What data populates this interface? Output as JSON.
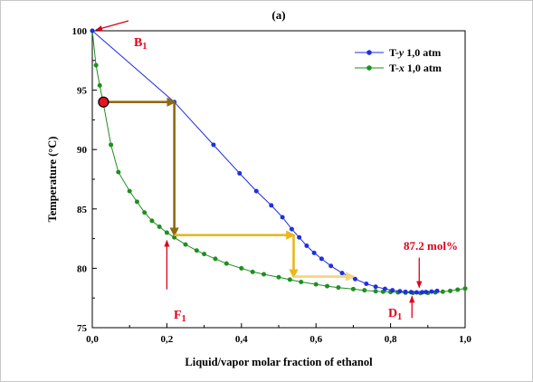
{
  "chart_data": {
    "type": "line",
    "panel_label": "(a)",
    "xlabel": "Liquid/vapor molar fraction of ethanol",
    "ylabel": "Temperature (°C)",
    "xlim": [
      0,
      1
    ],
    "ylim": [
      75,
      100
    ],
    "xticks": [
      "0,0",
      "0,2",
      "0,4",
      "0,6",
      "0,8",
      "1,0"
    ],
    "yticks": [
      "75",
      "80",
      "85",
      "90",
      "95",
      "100"
    ],
    "grid": false,
    "legend_position": "top-right",
    "series": [
      {
        "name_prefix": "T-",
        "name_var": "y",
        "name_suffix": " 1,0 atm",
        "color": "#1f2fe0",
        "x": [
          0.0,
          0.22,
          0.325,
          0.395,
          0.44,
          0.48,
          0.51,
          0.535,
          0.555,
          0.575,
          0.595,
          0.615,
          0.64,
          0.67,
          0.705,
          0.735,
          0.76,
          0.785,
          0.805,
          0.825,
          0.84,
          0.855,
          0.87,
          0.885,
          0.895,
          0.91,
          0.925
        ],
        "y": [
          100.0,
          94.0,
          90.4,
          88.0,
          86.5,
          85.3,
          84.3,
          83.3,
          82.6,
          81.9,
          81.3,
          80.8,
          80.2,
          79.6,
          79.1,
          78.7,
          78.45,
          78.27,
          78.15,
          78.07,
          78.02,
          77.99,
          77.97,
          77.98,
          78.0,
          78.04,
          78.1
        ]
      },
      {
        "name_prefix": "T-",
        "name_var": "x",
        "name_suffix": " 1,0 atm",
        "color": "#1e8f1e",
        "x": [
          0.0,
          0.01,
          0.02,
          0.03,
          0.05,
          0.07,
          0.1,
          0.12,
          0.14,
          0.16,
          0.18,
          0.2,
          0.22,
          0.25,
          0.28,
          0.3,
          0.33,
          0.36,
          0.4,
          0.43,
          0.46,
          0.5,
          0.53,
          0.56,
          0.6,
          0.63,
          0.66,
          0.7,
          0.73,
          0.76,
          0.78,
          0.8,
          0.82,
          0.84,
          0.86,
          0.88,
          0.9,
          0.92,
          0.94,
          0.96,
          0.98,
          1.0
        ],
        "y": [
          100.0,
          97.1,
          95.4,
          93.8,
          90.4,
          88.1,
          86.5,
          85.6,
          84.7,
          84.0,
          83.5,
          83.0,
          82.6,
          82.0,
          81.5,
          81.2,
          80.8,
          80.4,
          80.0,
          79.7,
          79.5,
          79.25,
          79.05,
          78.85,
          78.65,
          78.5,
          78.38,
          78.25,
          78.15,
          78.07,
          78.03,
          78.0,
          77.97,
          77.95,
          77.93,
          77.92,
          77.93,
          77.97,
          78.03,
          78.1,
          78.2,
          78.3
        ]
      }
    ],
    "annotations": {
      "B1": {
        "label_base": "B",
        "label_sub": "1",
        "x": 0.0,
        "y": 100.0,
        "color": "#e0001a"
      },
      "F1": {
        "label_base": "F",
        "label_sub": "1",
        "x": 0.2,
        "y": 82.8,
        "color": "#e0001a"
      },
      "D1": {
        "label_base": "D",
        "label_sub": "1",
        "x": 0.855,
        "y": 77.95,
        "color": "#e0001a"
      },
      "azeotrope": {
        "text": "87.2 mol%",
        "x": 0.872,
        "y": 78.0,
        "color": "#e0001a"
      },
      "feed_point": {
        "x": 0.03,
        "y": 94.0,
        "fill": "#e8141e"
      }
    },
    "stages": [
      {
        "color": "#8f6a14",
        "points": [
          [
            0.03,
            94.0
          ],
          [
            0.22,
            94.0
          ],
          [
            0.22,
            82.8
          ]
        ]
      },
      {
        "color": "#e8b81c",
        "points": [
          [
            0.22,
            82.8
          ],
          [
            0.54,
            82.8
          ],
          [
            0.54,
            79.3
          ]
        ]
      },
      {
        "color": "#f5d27e",
        "points": [
          [
            0.54,
            79.3
          ],
          [
            0.7,
            79.3
          ]
        ]
      }
    ]
  }
}
